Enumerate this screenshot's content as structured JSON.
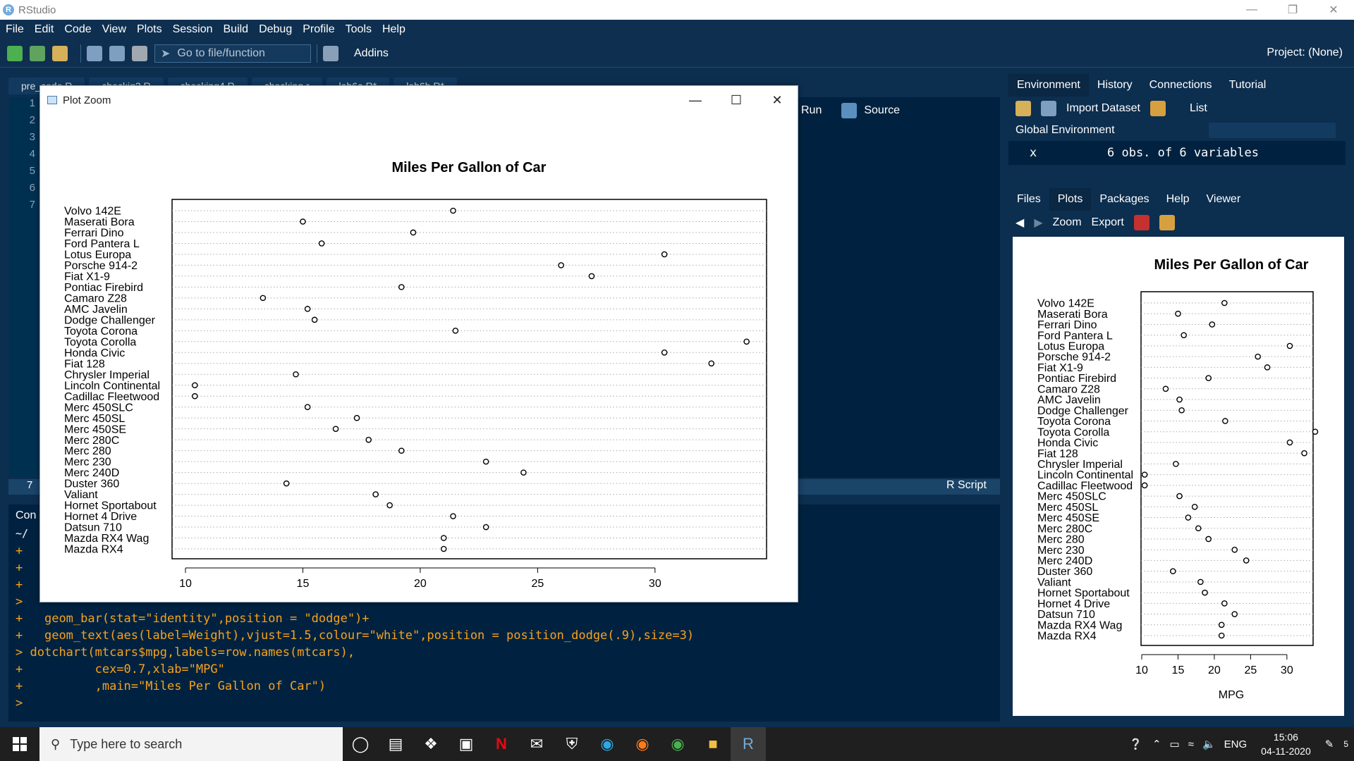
{
  "window": {
    "title": "RStudio"
  },
  "menu": [
    "File",
    "Edit",
    "Code",
    "View",
    "Plots",
    "Session",
    "Build",
    "Debug",
    "Profile",
    "Tools",
    "Help"
  ],
  "toolbar": {
    "goto_placeholder": "Go to file/function",
    "addins": "Addins",
    "project": "Project: (None)"
  },
  "editor": {
    "tabs": [
      "pre_code.R",
      "checkig2.R",
      "checking4.R",
      "checking.r",
      "lab6a.R*",
      "lab6b.R*"
    ],
    "line_numbers": [
      "1",
      "2",
      "3",
      "4",
      "5",
      "6",
      "7"
    ],
    "run_label": "Run",
    "source_label": "Source",
    "status_line": "7",
    "file_type": "R Script"
  },
  "console": {
    "title": "Con",
    "path": "~/",
    "lines": [
      {
        "p": "+",
        "t": ""
      },
      {
        "p": "+",
        "t": ""
      },
      {
        "p": "+",
        "t": ""
      },
      {
        "p": ">",
        "t": ""
      },
      {
        "p": "+",
        "t": "  geom_bar(stat=\"identity\",position = \"dodge\")+"
      },
      {
        "p": "+",
        "t": "  geom_text(aes(label=Weight),vjust=1.5,colour=\"white\",position = position_dodge(.9),size=3)"
      },
      {
        "p": ">",
        "t": "dotchart(mtcars$mpg,labels=row.names(mtcars),"
      },
      {
        "p": "+",
        "t": "         cex=0.7,xlab=\"MPG\""
      },
      {
        "p": "+",
        "t": "         ,main=\"Miles Per Gallon of Car\")"
      },
      {
        "p": ">",
        "t": ""
      }
    ]
  },
  "env_pane": {
    "tabs": [
      "Environment",
      "History",
      "Connections",
      "Tutorial"
    ],
    "import_label": "Import Dataset",
    "list_label": "List",
    "scope": "Global Environment",
    "var_name": "x",
    "var_value": "6 obs. of 6 variables"
  },
  "files_pane": {
    "tabs": [
      "Files",
      "Plots",
      "Packages",
      "Help",
      "Viewer"
    ],
    "zoom_label": "Zoom",
    "export_label": "Export"
  },
  "zoom_window": {
    "title": "Plot Zoom"
  },
  "chart_data": {
    "type": "scatter",
    "title": "Miles Per Gallon of Car",
    "xlabel": "MPG",
    "ylabel": "",
    "xlim": [
      10,
      34
    ],
    "x_ticks": [
      10,
      15,
      20,
      25,
      30
    ],
    "categories": [
      "Volvo 142E",
      "Maserati Bora",
      "Ferrari Dino",
      "Ford Pantera L",
      "Lotus Europa",
      "Porsche 914-2",
      "Fiat X1-9",
      "Pontiac Firebird",
      "Camaro Z28",
      "AMC Javelin",
      "Dodge Challenger",
      "Toyota Corona",
      "Toyota Corolla",
      "Honda Civic",
      "Fiat 128",
      "Chrysler Imperial",
      "Lincoln Continental",
      "Cadillac Fleetwood",
      "Merc 450SLC",
      "Merc 450SL",
      "Merc 450SE",
      "Merc 280C",
      "Merc 280",
      "Merc 230",
      "Merc 240D",
      "Duster 360",
      "Valiant",
      "Hornet Sportabout",
      "Hornet 4 Drive",
      "Datsun 710",
      "Mazda RX4 Wag",
      "Mazda RX4"
    ],
    "values": [
      21.4,
      15.0,
      19.7,
      15.8,
      30.4,
      26.0,
      27.3,
      19.2,
      13.3,
      15.2,
      15.5,
      21.5,
      33.9,
      30.4,
      32.4,
      14.7,
      10.4,
      10.4,
      15.2,
      17.3,
      16.4,
      17.8,
      19.2,
      22.8,
      24.4,
      14.3,
      18.1,
      18.7,
      21.4,
      22.8,
      21.0,
      21.0
    ],
    "grid": "dotted horizontal"
  },
  "taskbar": {
    "search_placeholder": "Type here to search",
    "lang": "ENG",
    "time": "15:06",
    "date": "04-11-2020",
    "notif": "5"
  }
}
